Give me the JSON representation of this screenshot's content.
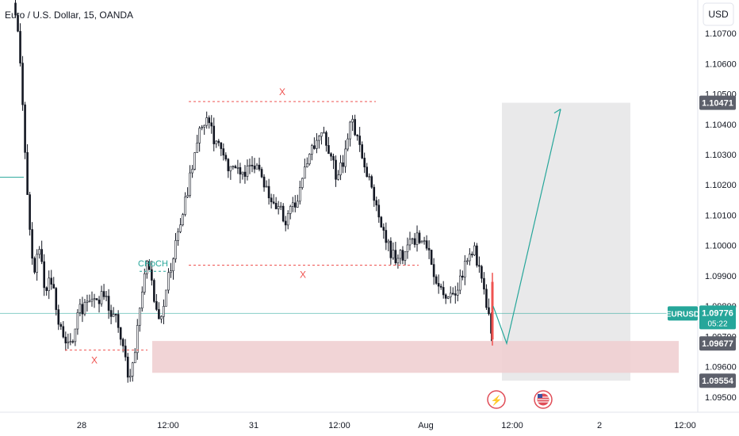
{
  "header": {
    "symbol_title": "Euro / U.S. Dollar, 15, OANDA",
    "currency_button": "USD"
  },
  "chart_data": {
    "type": "candlestick",
    "title": "Euro / U.S. Dollar, 15, OANDA",
    "ylim": [
      1.0945,
      1.1081
    ],
    "y_ticks": [
      "1.10700",
      "1.10600",
      "1.10500",
      "1.10400",
      "1.10300",
      "1.10200",
      "1.10100",
      "1.10000",
      "1.09900",
      "1.09800",
      "1.09700",
      "1.09600",
      "1.09500"
    ],
    "x_ticks": [
      "28",
      "12:00",
      "31",
      "12:00",
      "Aug",
      "12:00",
      "2",
      "12:00"
    ],
    "price_path": [
      [
        0.0,
        1.108
      ],
      [
        0.8,
        1.107
      ],
      [
        1.6,
        1.104
      ],
      [
        2.4,
        1.101
      ],
      [
        3.2,
        1.099
      ],
      [
        4.0,
        1.1
      ],
      [
        5.0,
        1.0985
      ],
      [
        6.0,
        1.099
      ],
      [
        7.0,
        1.0975
      ],
      [
        8.0,
        1.097
      ],
      [
        9.0,
        1.0968
      ],
      [
        10.0,
        1.0978
      ],
      [
        11.0,
        1.098
      ],
      [
        12.0,
        1.0983
      ],
      [
        13.0,
        1.0982
      ],
      [
        14.0,
        1.0985
      ],
      [
        15.0,
        1.0978
      ],
      [
        16.0,
        1.0975
      ],
      [
        17.0,
        1.0965
      ],
      [
        18.0,
        1.0955
      ],
      [
        18.6,
        1.0962
      ],
      [
        19.2,
        1.0975
      ],
      [
        19.8,
        1.0985
      ],
      [
        20.6,
        1.0996
      ],
      [
        21.6,
        1.0985
      ],
      [
        22.4,
        1.0975
      ],
      [
        23.2,
        1.0982
      ],
      [
        24.0,
        1.099
      ],
      [
        25.0,
        1.1
      ],
      [
        26.0,
        1.101
      ],
      [
        27.0,
        1.102
      ],
      [
        28.0,
        1.103
      ],
      [
        29.0,
        1.104
      ],
      [
        30.0,
        1.1042
      ],
      [
        31.0,
        1.1035
      ],
      [
        32.0,
        1.103
      ],
      [
        33.0,
        1.1025
      ],
      [
        34.0,
        1.1028
      ],
      [
        35.0,
        1.1022
      ],
      [
        36.0,
        1.1024
      ],
      [
        37.0,
        1.1028
      ],
      [
        38.0,
        1.1023
      ],
      [
        39.0,
        1.1018
      ],
      [
        40.0,
        1.1015
      ],
      [
        41.0,
        1.1012
      ],
      [
        42.0,
        1.1008
      ],
      [
        43.0,
        1.1012
      ],
      [
        44.0,
        1.1018
      ],
      [
        45.0,
        1.1025
      ],
      [
        46.0,
        1.1032
      ],
      [
        47.0,
        1.1038
      ],
      [
        48.0,
        1.1035
      ],
      [
        49.0,
        1.1028
      ],
      [
        50.0,
        1.1022
      ],
      [
        51.0,
        1.103
      ],
      [
        52.0,
        1.1043
      ],
      [
        53.0,
        1.1036
      ],
      [
        54.0,
        1.1028
      ],
      [
        55.0,
        1.102
      ],
      [
        56.0,
        1.1012
      ],
      [
        57.0,
        1.1005
      ],
      [
        58.0,
        1.0998
      ],
      [
        59.0,
        1.0995
      ],
      [
        60.0,
        1.0997
      ],
      [
        61.0,
        1.1
      ],
      [
        62.0,
        1.1003
      ],
      [
        63.0,
        1.1002
      ],
      [
        64.0,
        1.0997
      ],
      [
        65.0,
        1.099
      ],
      [
        66.0,
        1.0985
      ],
      [
        67.0,
        1.0982
      ],
      [
        68.0,
        1.0985
      ],
      [
        69.0,
        1.099
      ],
      [
        70.0,
        1.0995
      ],
      [
        71.0,
        1.0998
      ],
      [
        72.0,
        1.099
      ],
      [
        73.0,
        1.0978
      ],
      [
        73.6,
        1.0972
      ]
    ],
    "last_price": "1.09776",
    "last_price_countdown": "05:22",
    "marked_prices": [
      {
        "value": 1.10471,
        "label": "1.10471"
      },
      {
        "value": 1.09677,
        "label": "1.09677"
      },
      {
        "value": 1.09554,
        "label": "1.09554"
      }
    ],
    "annotations": {
      "choch_label": "CHoCH",
      "top_x_label": "X",
      "mid_x_label": "X",
      "low_x_label": "X",
      "top_dashed_level": 1.10475,
      "mid_dashed_level": 1.09935,
      "low_dashed_level": 1.09655,
      "choch_level": 1.09915,
      "left_level": 1.10225
    },
    "demand_zone": {
      "from": 1.0958,
      "to": 1.09685
    },
    "projection_box": {
      "from": 1.09554,
      "to": 1.10471
    },
    "projection_path": [
      {
        "step": 0,
        "price": 1.09677
      },
      {
        "step": 1,
        "price": 1.1045
      }
    ]
  },
  "badges": {
    "symbol_badge": "EURUSD"
  },
  "events": [
    {
      "name": "flash-event-icon",
      "glyph": "⚡"
    },
    {
      "name": "us-flag-event-icon",
      "glyph": ""
    }
  ],
  "colors": {
    "up": "#26a69a",
    "down": "#ef5350",
    "candle_dark": "#131722",
    "zone": "#f0cfd1",
    "projection": "#e9e9ea",
    "label_dark": "#5d606b",
    "teal_badge": "#26a69a"
  }
}
